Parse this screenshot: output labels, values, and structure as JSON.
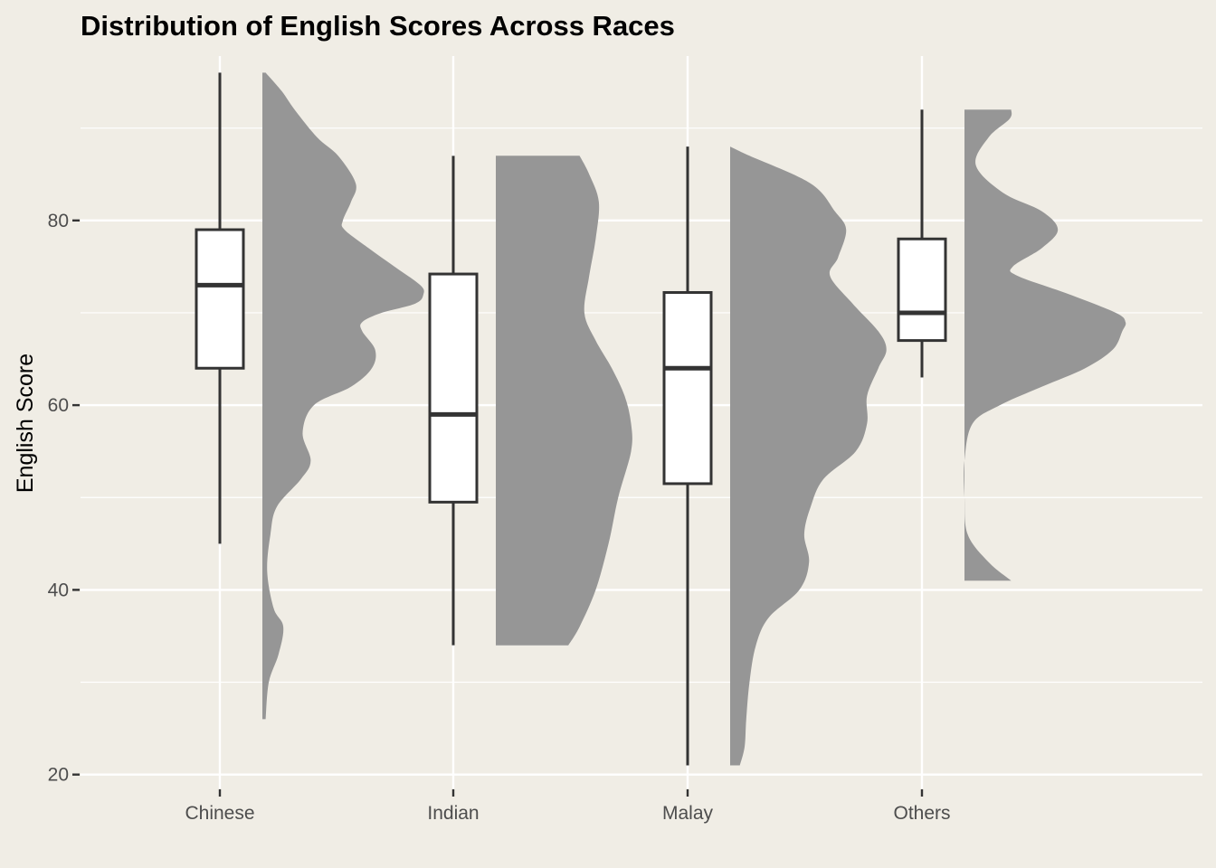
{
  "chart_data": {
    "type": "boxplot+half-violin",
    "title": "Distribution of English Scores Across Races",
    "xlabel": "",
    "ylabel": "English Score",
    "ylim": [
      18.5,
      97.8
    ],
    "y_ticks": [
      20,
      40,
      60,
      80
    ],
    "grid": true,
    "categories": [
      "Chinese",
      "Indian",
      "Malay",
      "Others"
    ],
    "series": [
      {
        "category": "Chinese",
        "box": {
          "min": 45,
          "q1": 64,
          "median": 73,
          "q3": 79,
          "max": 96
        },
        "density_range": [
          26,
          96
        ],
        "density": [
          [
            26,
            0.02
          ],
          [
            30,
            0.04
          ],
          [
            33,
            0.1
          ],
          [
            36,
            0.13
          ],
          [
            38,
            0.07
          ],
          [
            42,
            0.03
          ],
          [
            46,
            0.05
          ],
          [
            49,
            0.09
          ],
          [
            52,
            0.24
          ],
          [
            54,
            0.3
          ],
          [
            57,
            0.25
          ],
          [
            60,
            0.32
          ],
          [
            62,
            0.55
          ],
          [
            64,
            0.68
          ],
          [
            66,
            0.7
          ],
          [
            68,
            0.62
          ],
          [
            69,
            0.62
          ],
          [
            70,
            0.74
          ],
          [
            71,
            0.95
          ],
          [
            72,
            1.0
          ],
          [
            73,
            0.98
          ],
          [
            75,
            0.82
          ],
          [
            77,
            0.66
          ],
          [
            79,
            0.51
          ],
          [
            80,
            0.5
          ],
          [
            82,
            0.55
          ],
          [
            84,
            0.58
          ],
          [
            87,
            0.47
          ],
          [
            89,
            0.34
          ],
          [
            92,
            0.2
          ],
          [
            94,
            0.12
          ],
          [
            96,
            0.02
          ]
        ]
      },
      {
        "category": "Indian",
        "box": {
          "min": 34,
          "q1": 49.5,
          "median": 59,
          "q3": 74.2,
          "max": 87
        },
        "density_range": [
          34,
          87
        ],
        "density": [
          [
            34,
            0.45
          ],
          [
            36,
            0.52
          ],
          [
            40,
            0.62
          ],
          [
            45,
            0.7
          ],
          [
            50,
            0.76
          ],
          [
            55,
            0.84
          ],
          [
            58,
            0.84
          ],
          [
            61,
            0.8
          ],
          [
            64,
            0.72
          ],
          [
            67,
            0.62
          ],
          [
            70,
            0.55
          ],
          [
            74,
            0.58
          ],
          [
            78,
            0.62
          ],
          [
            82,
            0.64
          ],
          [
            85,
            0.58
          ],
          [
            87,
            0.52
          ]
        ]
      },
      {
        "category": "Malay",
        "box": {
          "min": 21,
          "q1": 51.5,
          "median": 64,
          "q3": 72.2,
          "max": 88
        },
        "density_range": [
          21,
          88
        ],
        "density": [
          [
            21,
            0.06
          ],
          [
            23,
            0.09
          ],
          [
            26,
            0.1
          ],
          [
            30,
            0.12
          ],
          [
            34,
            0.16
          ],
          [
            37,
            0.24
          ],
          [
            40,
            0.43
          ],
          [
            43,
            0.49
          ],
          [
            46,
            0.46
          ],
          [
            49,
            0.5
          ],
          [
            52,
            0.58
          ],
          [
            55,
            0.78
          ],
          [
            58,
            0.85
          ],
          [
            61,
            0.85
          ],
          [
            64,
            0.92
          ],
          [
            66,
            0.97
          ],
          [
            68,
            0.92
          ],
          [
            71,
            0.76
          ],
          [
            74,
            0.62
          ],
          [
            76,
            0.67
          ],
          [
            79,
            0.72
          ],
          [
            81,
            0.65
          ],
          [
            84,
            0.5
          ],
          [
            87,
            0.12
          ],
          [
            88,
            0.0
          ]
        ]
      },
      {
        "category": "Others",
        "box": {
          "min": 63,
          "q1": 67,
          "median": 70,
          "q3": 78,
          "max": 92
        },
        "density_range": [
          41,
          92
        ],
        "density": [
          [
            41,
            0.29
          ],
          [
            43,
            0.15
          ],
          [
            46,
            0.02
          ],
          [
            50,
            0.0
          ],
          [
            54,
            0.0
          ],
          [
            58,
            0.05
          ],
          [
            60,
            0.22
          ],
          [
            62,
            0.48
          ],
          [
            64,
            0.75
          ],
          [
            66,
            0.92
          ],
          [
            68,
            0.98
          ],
          [
            69,
            1.0
          ],
          [
            70,
            0.94
          ],
          [
            72,
            0.65
          ],
          [
            74,
            0.33
          ],
          [
            75,
            0.3
          ],
          [
            77,
            0.48
          ],
          [
            79,
            0.58
          ],
          [
            81,
            0.48
          ],
          [
            83,
            0.24
          ],
          [
            86,
            0.07
          ],
          [
            89,
            0.15
          ],
          [
            91,
            0.28
          ],
          [
            92,
            0.29
          ]
        ]
      }
    ]
  }
}
